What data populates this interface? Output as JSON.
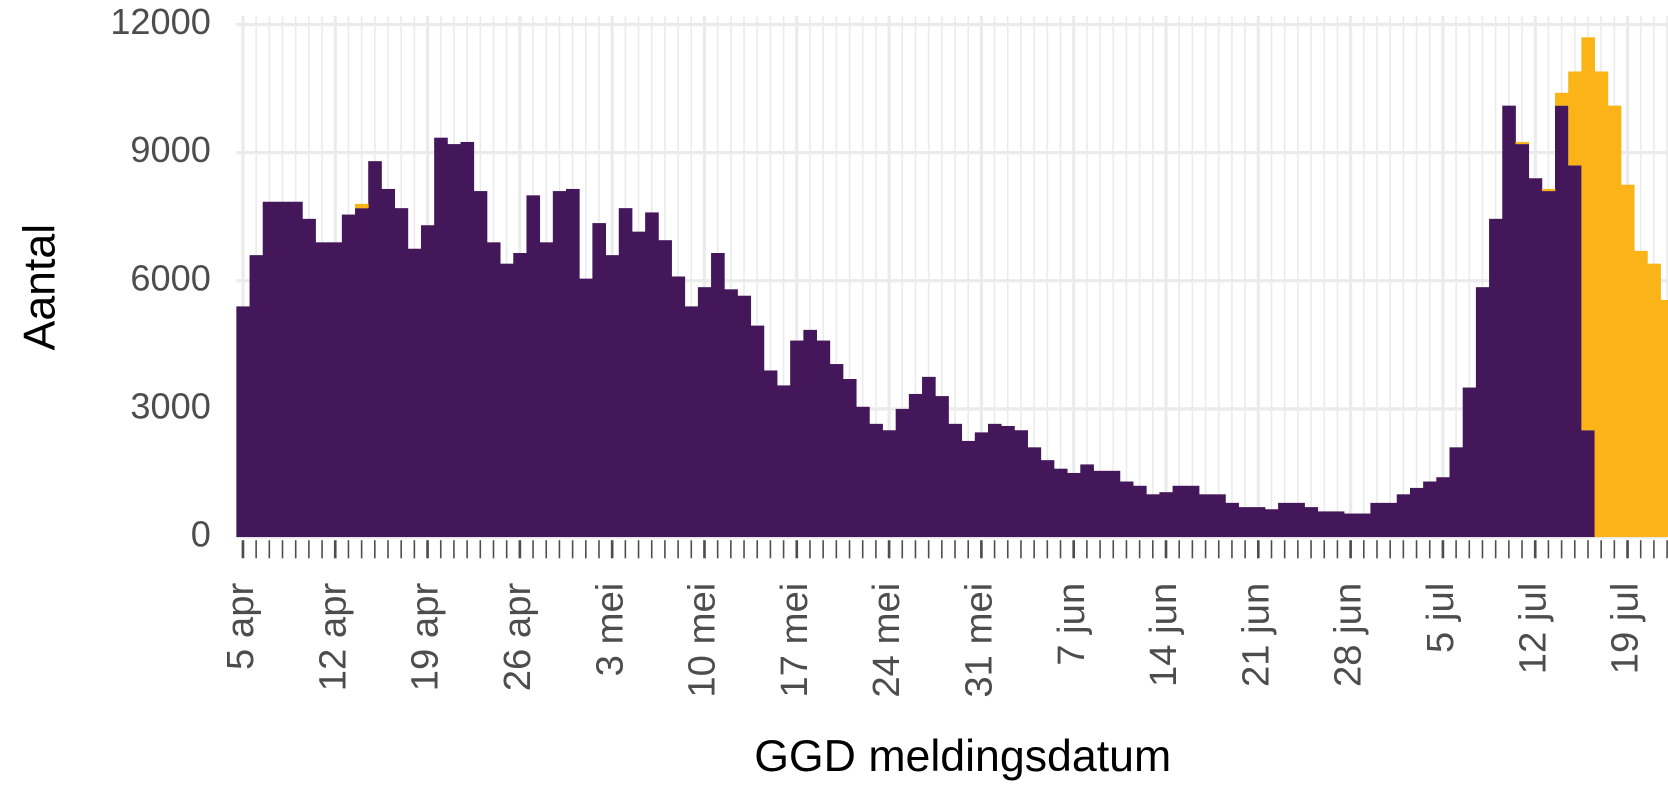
{
  "chart_data": {
    "type": "bar",
    "stacked": true,
    "x_label": "GGD meldingsdatum",
    "y_label": "Aantal",
    "categories": [
      "5 apr",
      null,
      null,
      null,
      null,
      null,
      null,
      "12 apr",
      null,
      null,
      null,
      null,
      null,
      null,
      "19 apr",
      null,
      null,
      null,
      null,
      null,
      null,
      "26 apr",
      null,
      null,
      null,
      null,
      null,
      null,
      "3 mei",
      null,
      null,
      null,
      null,
      null,
      null,
      "10 mei",
      null,
      null,
      null,
      null,
      null,
      null,
      "17 mei",
      null,
      null,
      null,
      null,
      null,
      null,
      "24 mei",
      null,
      null,
      null,
      null,
      null,
      null,
      "31 mei",
      null,
      null,
      null,
      null,
      null,
      null,
      "7 jun",
      null,
      null,
      null,
      null,
      null,
      null,
      "14 jun",
      null,
      null,
      null,
      null,
      null,
      null,
      "21 jun",
      null,
      null,
      null,
      null,
      null,
      null,
      "28 jun",
      null,
      null,
      null,
      null,
      null,
      null,
      "5 jul",
      null,
      null,
      null,
      null,
      null,
      null,
      "12 jul",
      null,
      null,
      null,
      null,
      null,
      null,
      "19 jul",
      null,
      null,
      null
    ],
    "series": [
      {
        "color": "#431759",
        "values": [
          5400,
          6600,
          7850,
          7850,
          7850,
          7450,
          6900,
          6900,
          7550,
          7700,
          8800,
          8150,
          7700,
          6750,
          7300,
          9350,
          9200,
          9250,
          8100,
          6900,
          6400,
          6650,
          8000,
          6900,
          8100,
          8150,
          6050,
          7350,
          6600,
          7700,
          7150,
          7600,
          6950,
          6100,
          5400,
          5850,
          6650,
          5800,
          5650,
          4950,
          3900,
          3550,
          4600,
          4850,
          4600,
          4050,
          3700,
          3050,
          2650,
          2500,
          3000,
          3350,
          3750,
          3300,
          2650,
          2250,
          2450,
          2650,
          2600,
          2500,
          2100,
          1800,
          1600,
          1500,
          1700,
          1550,
          1550,
          1300,
          1200,
          1000,
          1050,
          1200,
          1200,
          1000,
          1000,
          800,
          700,
          700,
          650,
          800,
          800,
          700,
          600,
          600,
          550,
          550,
          800,
          800,
          1000,
          1150,
          1300,
          1400,
          2100,
          3500,
          5850,
          7450,
          10100,
          9200,
          8400,
          8100,
          10100,
          8700,
          2500,
          0,
          0,
          0,
          0,
          0,
          0
        ]
      },
      {
        "color": "#fbb418",
        "values": [
          0,
          0,
          0,
          0,
          0,
          0,
          0,
          0,
          0,
          100,
          0,
          0,
          0,
          0,
          0,
          0,
          0,
          0,
          0,
          0,
          0,
          0,
          0,
          0,
          0,
          0,
          0,
          0,
          0,
          0,
          0,
          0,
          0,
          0,
          0,
          0,
          0,
          0,
          0,
          0,
          0,
          0,
          0,
          0,
          0,
          0,
          0,
          0,
          0,
          0,
          0,
          0,
          0,
          0,
          0,
          0,
          0,
          0,
          0,
          0,
          0,
          0,
          0,
          0,
          0,
          0,
          0,
          0,
          0,
          0,
          0,
          0,
          0,
          0,
          0,
          0,
          0,
          0,
          0,
          0,
          0,
          0,
          0,
          0,
          0,
          0,
          0,
          0,
          0,
          0,
          0,
          0,
          0,
          0,
          0,
          0,
          0,
          50,
          0,
          50,
          300,
          2200,
          9200,
          10900,
          10100,
          8250,
          6700,
          6400,
          5550
        ]
      }
    ],
    "ylim": [
      0,
      12200
    ],
    "yticks": [
      0,
      3000,
      6000,
      9000,
      12000
    ],
    "grid": true
  }
}
